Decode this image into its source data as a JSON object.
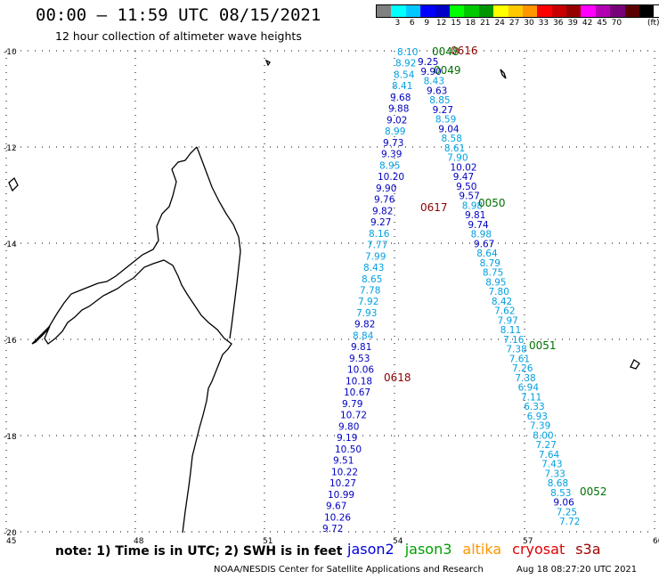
{
  "header": {
    "title": "00:00 – 11:59 UTC 08/15/2021",
    "subtitle": "12 hour collection of altimeter wave heights"
  },
  "legend": {
    "unit": "(ft)",
    "colors": [
      "#808080",
      "#00ffff",
      "#00c8ff",
      "#0000ff",
      "#0000c8",
      "#00ff00",
      "#00c800",
      "#009600",
      "#ffff00",
      "#ffc800",
      "#ff9600",
      "#ff0000",
      "#c80000",
      "#960000",
      "#ff00ff",
      "#b400b4",
      "#780078",
      "#5a0000",
      "#000000"
    ],
    "labels": [
      "3",
      "6",
      "9",
      "12",
      "15",
      "18",
      "21",
      "24",
      "27",
      "30",
      "33",
      "36",
      "39",
      "42",
      "45",
      "70"
    ]
  },
  "axes": {
    "lon_ticks": [
      "45",
      "48",
      "51",
      "54",
      "57",
      "60"
    ],
    "lat_ticks": [
      "-10",
      "-12",
      "-14",
      "-16",
      "-18",
      "-20"
    ]
  },
  "passes": [
    {
      "id": "0616",
      "color": "#8b0000"
    },
    {
      "id": "0617",
      "color": "#8b0000"
    },
    {
      "id": "0618",
      "color": "#8b0000"
    },
    {
      "id": "0048",
      "color": "#007000"
    },
    {
      "id": "0049",
      "color": "#007000"
    },
    {
      "id": "0050",
      "color": "#007000"
    },
    {
      "id": "0051",
      "color": "#007000"
    },
    {
      "id": "0052",
      "color": "#007000"
    }
  ],
  "track_a": [
    {
      "v": "8.10",
      "c": "#00a0e0"
    },
    {
      "v": "8.92",
      "c": "#00a0e0"
    },
    {
      "v": "8.54",
      "c": "#00a0e0"
    },
    {
      "v": "8.41",
      "c": "#00a0e0"
    },
    {
      "v": "9.68",
      "c": "#0000c0"
    },
    {
      "v": "9.88",
      "c": "#0000c0"
    },
    {
      "v": "9.02",
      "c": "#0000c0"
    },
    {
      "v": "8.99",
      "c": "#00a0e0"
    },
    {
      "v": "9.73",
      "c": "#0000c0"
    },
    {
      "v": "9.39",
      "c": "#0000c0"
    },
    {
      "v": "8.95",
      "c": "#00a0e0"
    },
    {
      "v": "10.20",
      "c": "#0000c0"
    },
    {
      "v": "9.90",
      "c": "#0000c0"
    },
    {
      "v": "9.76",
      "c": "#0000c0"
    },
    {
      "v": "9.82",
      "c": "#0000c0"
    },
    {
      "v": "9.27",
      "c": "#0000c0"
    },
    {
      "v": "8.16",
      "c": "#00a0e0"
    },
    {
      "v": "7.77",
      "c": "#00a0e0"
    },
    {
      "v": "7.99",
      "c": "#00a0e0"
    },
    {
      "v": "8.43",
      "c": "#00a0e0"
    },
    {
      "v": "8.65",
      "c": "#00a0e0"
    },
    {
      "v": "7.78",
      "c": "#00a0e0"
    },
    {
      "v": "7.92",
      "c": "#00a0e0"
    },
    {
      "v": "7.93",
      "c": "#00a0e0"
    },
    {
      "v": "9.82",
      "c": "#0000c0"
    },
    {
      "v": "8.84",
      "c": "#00a0e0"
    },
    {
      "v": "9.81",
      "c": "#0000c0"
    },
    {
      "v": "9.53",
      "c": "#0000c0"
    },
    {
      "v": "10.06",
      "c": "#0000c0"
    },
    {
      "v": "10.18",
      "c": "#0000c0"
    },
    {
      "v": "10.67",
      "c": "#0000c0"
    },
    {
      "v": "9.79",
      "c": "#0000c0"
    },
    {
      "v": "10.72",
      "c": "#0000c0"
    },
    {
      "v": "9.80",
      "c": "#0000c0"
    },
    {
      "v": "9.19",
      "c": "#0000c0"
    },
    {
      "v": "10.50",
      "c": "#0000c0"
    },
    {
      "v": "9.51",
      "c": "#0000c0"
    },
    {
      "v": "10.22",
      "c": "#0000c0"
    },
    {
      "v": "10.27",
      "c": "#0000c0"
    },
    {
      "v": "10.99",
      "c": "#0000c0"
    },
    {
      "v": "9.67",
      "c": "#0000c0"
    },
    {
      "v": "10.26",
      "c": "#0000c0"
    },
    {
      "v": "9.72",
      "c": "#0000c0"
    }
  ],
  "track_b": [
    {
      "v": "9.25",
      "c": "#0000c0"
    },
    {
      "v": "9.90",
      "c": "#0000c0"
    },
    {
      "v": "8.43",
      "c": "#00a0e0"
    },
    {
      "v": "9.63",
      "c": "#0000c0"
    },
    {
      "v": "8.85",
      "c": "#00a0e0"
    },
    {
      "v": "9.27",
      "c": "#0000c0"
    },
    {
      "v": "8.59",
      "c": "#00a0e0"
    },
    {
      "v": "9.04",
      "c": "#0000c0"
    },
    {
      "v": "8.58",
      "c": "#00a0e0"
    },
    {
      "v": "8.61",
      "c": "#00a0e0"
    },
    {
      "v": "7.90",
      "c": "#00a0e0"
    },
    {
      "v": "10.02",
      "c": "#0000c0"
    },
    {
      "v": "9.47",
      "c": "#0000c0"
    },
    {
      "v": "9.50",
      "c": "#0000c0"
    },
    {
      "v": "9.57",
      "c": "#0000c0"
    },
    {
      "v": "8.98",
      "c": "#00a0e0"
    },
    {
      "v": "9.81",
      "c": "#0000c0"
    },
    {
      "v": "9.74",
      "c": "#0000c0"
    },
    {
      "v": "8.98",
      "c": "#00a0e0"
    },
    {
      "v": "9.67",
      "c": "#0000c0"
    },
    {
      "v": "8.64",
      "c": "#00a0e0"
    },
    {
      "v": "8.79",
      "c": "#00a0e0"
    },
    {
      "v": "8.75",
      "c": "#00a0e0"
    },
    {
      "v": "8.95",
      "c": "#00a0e0"
    },
    {
      "v": "7.80",
      "c": "#00a0e0"
    },
    {
      "v": "8.42",
      "c": "#00a0e0"
    },
    {
      "v": "7.62",
      "c": "#00a0e0"
    },
    {
      "v": "7.97",
      "c": "#00a0e0"
    },
    {
      "v": "8.11",
      "c": "#00a0e0"
    },
    {
      "v": "7.16",
      "c": "#00a0e0"
    },
    {
      "v": "7.38",
      "c": "#00a0e0"
    },
    {
      "v": "7.61",
      "c": "#00a0e0"
    },
    {
      "v": "7.26",
      "c": "#00a0e0"
    },
    {
      "v": "7.38",
      "c": "#00a0e0"
    },
    {
      "v": "6.94",
      "c": "#00a0e0"
    },
    {
      "v": "7.11",
      "c": "#00a0e0"
    },
    {
      "v": "6.33",
      "c": "#00a0e0"
    },
    {
      "v": "6.93",
      "c": "#00a0e0"
    },
    {
      "v": "7.39",
      "c": "#00a0e0"
    },
    {
      "v": "8.00",
      "c": "#00a0e0"
    },
    {
      "v": "7.27",
      "c": "#00a0e0"
    },
    {
      "v": "7.64",
      "c": "#00a0e0"
    },
    {
      "v": "7.43",
      "c": "#00a0e0"
    },
    {
      "v": "7.33",
      "c": "#00a0e0"
    },
    {
      "v": "8.68",
      "c": "#00a0e0"
    },
    {
      "v": "8.53",
      "c": "#00a0e0"
    },
    {
      "v": "9.06",
      "c": "#0000c0"
    },
    {
      "v": "7.25",
      "c": "#00a0e0"
    },
    {
      "v": "7.72",
      "c": "#00a0e0"
    }
  ],
  "footer": {
    "note": "note: 1) Time is in UTC; 2) SWH is in feet",
    "satellites": [
      {
        "name": "jason2",
        "color": "#0000e0"
      },
      {
        "name": "jason3",
        "color": "#00a000"
      },
      {
        "name": "altika",
        "color": "#ff9600"
      },
      {
        "name": "cryosat",
        "color": "#e00000"
      },
      {
        "name": "s3a",
        "color": "#a00000"
      }
    ],
    "credit": "NOAA/NESDIS Center for Satellite Applications and Research",
    "timestamp": "Aug 18 08:27:20 UTC 2021"
  }
}
